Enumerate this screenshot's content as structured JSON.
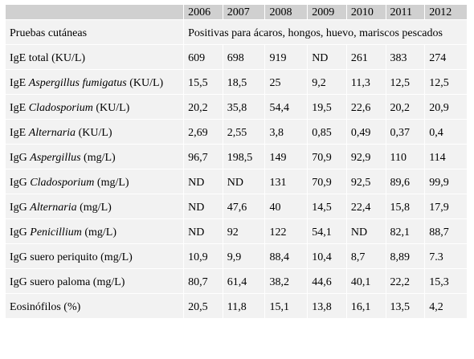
{
  "years": [
    "2006",
    "2007",
    "2008",
    "2009",
    "2010",
    "2011",
    "2012"
  ],
  "header_corner": "",
  "skin_tests": {
    "label": "Pruebas cutáneas",
    "value": "Positivas para ácaros, hongos, huevo, mariscos pescados"
  },
  "rows": [
    {
      "prefix": "IgE total (KU/L)",
      "italic": "",
      "suffix": "",
      "values": [
        "609",
        "698",
        "919",
        "ND",
        "261",
        "383",
        "274"
      ]
    },
    {
      "prefix": "IgE ",
      "italic": "Aspergillus fumigatus",
      "suffix": " (KU/L)",
      "values": [
        "15,5",
        "18,5",
        "25",
        "9,2",
        "11,3",
        "12,5",
        "12,5"
      ]
    },
    {
      "prefix": "IgE ",
      "italic": "Cladosporium",
      "suffix": " (KU/L)",
      "values": [
        "20,2",
        "35,8",
        "54,4",
        "19,5",
        "22,6",
        "20,2",
        "20,9"
      ]
    },
    {
      "prefix": "IgE ",
      "italic": "Alternaria",
      "suffix": " (KU/L)",
      "values": [
        "2,69",
        "2,55",
        "3,8",
        "0,85",
        "0,49",
        "0,37",
        "0,4"
      ]
    },
    {
      "prefix": "IgG ",
      "italic": "Aspergillus",
      "suffix": " (mg/L)",
      "values": [
        "96,7",
        "198,5",
        "149",
        "70,9",
        "92,9",
        "110",
        "114"
      ]
    },
    {
      "prefix": "IgG ",
      "italic": "Cladosporium",
      "suffix": " (mg/L)",
      "values": [
        "ND",
        "ND",
        "131",
        "70,9",
        "92,5",
        "89,6",
        "99,9"
      ]
    },
    {
      "prefix": "IgG ",
      "italic": "Alternaria",
      "suffix": " (mg/L)",
      "values": [
        "ND",
        "47,6",
        "40",
        "14,5",
        "22,4",
        "15,8",
        "17,9"
      ]
    },
    {
      "prefix": "IgG ",
      "italic": "Penicillium",
      "suffix": " (mg/L)",
      "values": [
        "ND",
        "92",
        "122",
        "54,1",
        "ND",
        "82,1",
        "88,7"
      ]
    },
    {
      "prefix": "IgG suero periquito (mg/L)",
      "italic": "",
      "suffix": "",
      "values": [
        "10,9",
        "9,9",
        "88,4",
        "10,4",
        "8,7",
        "8,89",
        "7.3"
      ]
    },
    {
      "prefix": "IgG suero paloma (mg/L)",
      "italic": "",
      "suffix": "",
      "values": [
        "80,7",
        "61,4",
        "38,2",
        "44,6",
        "40,1",
        "22,2",
        "15,3"
      ]
    },
    {
      "prefix": "Eosinófilos (%)",
      "italic": "",
      "suffix": "",
      "values": [
        "20,5",
        "11,8",
        "15,1",
        "13,8",
        "16,1",
        "13,5",
        "4,2"
      ]
    }
  ]
}
